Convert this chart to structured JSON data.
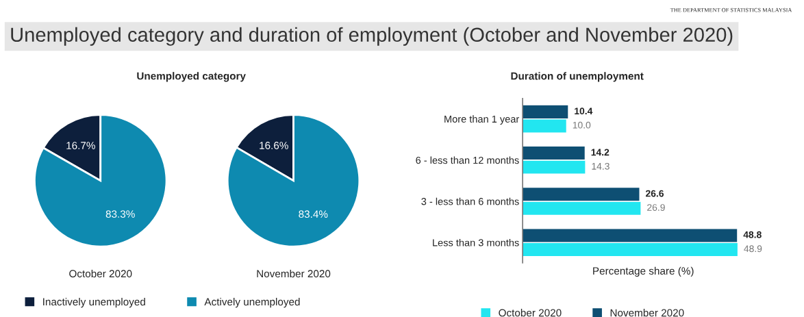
{
  "chart_data": [
    {
      "type": "pie",
      "title": "Unemployed category",
      "xlabel": "October 2020",
      "categories": [
        "Inactively unemployed",
        "Actively unemployed"
      ],
      "values": [
        16.7,
        83.3
      ],
      "colors": [
        "#0d1f3c",
        "#0e8ab0"
      ],
      "value_labels": [
        "16.7%",
        "83.3%"
      ],
      "legend": "bottom",
      "annotations": [
        "THE DEPARTMENT OF STATISTICS MALAYSIA",
        "Unemployed category and duration of employment (October and November 2020)"
      ]
    },
    {
      "type": "pie",
      "xlabel": "November 2020",
      "values": [
        16.6,
        83.4
      ],
      "colors": [
        "#0d1f3c",
        "#0e8ab0"
      ],
      "value_labels": [
        "16.6%",
        "83.4%"
      ]
    },
    {
      "type": "bar",
      "orientation": "horizontal",
      "title": "Duration of unemployment",
      "xlabel": "Percentage share (%)",
      "categories": [
        "More than 1 year",
        "6 - less than 12 months",
        "3 - less than 6 months",
        "Less than 3 months"
      ],
      "series": [
        {
          "name": "October 2020",
          "color": "#22e6f0",
          "values": [
            10.0,
            14.3,
            26.9,
            48.9
          ],
          "value_labels": [
            "10.0",
            "14.3",
            "26.9",
            "48.9"
          ]
        },
        {
          "name": "November 2020",
          "color": "#0e4f73",
          "values": [
            10.4,
            14.2,
            26.6,
            48.8
          ],
          "value_labels": [
            "10.4",
            "14.2",
            "26.6",
            "48.8"
          ]
        }
      ],
      "tick_labels": "y",
      "legend": "bottom"
    }
  ]
}
